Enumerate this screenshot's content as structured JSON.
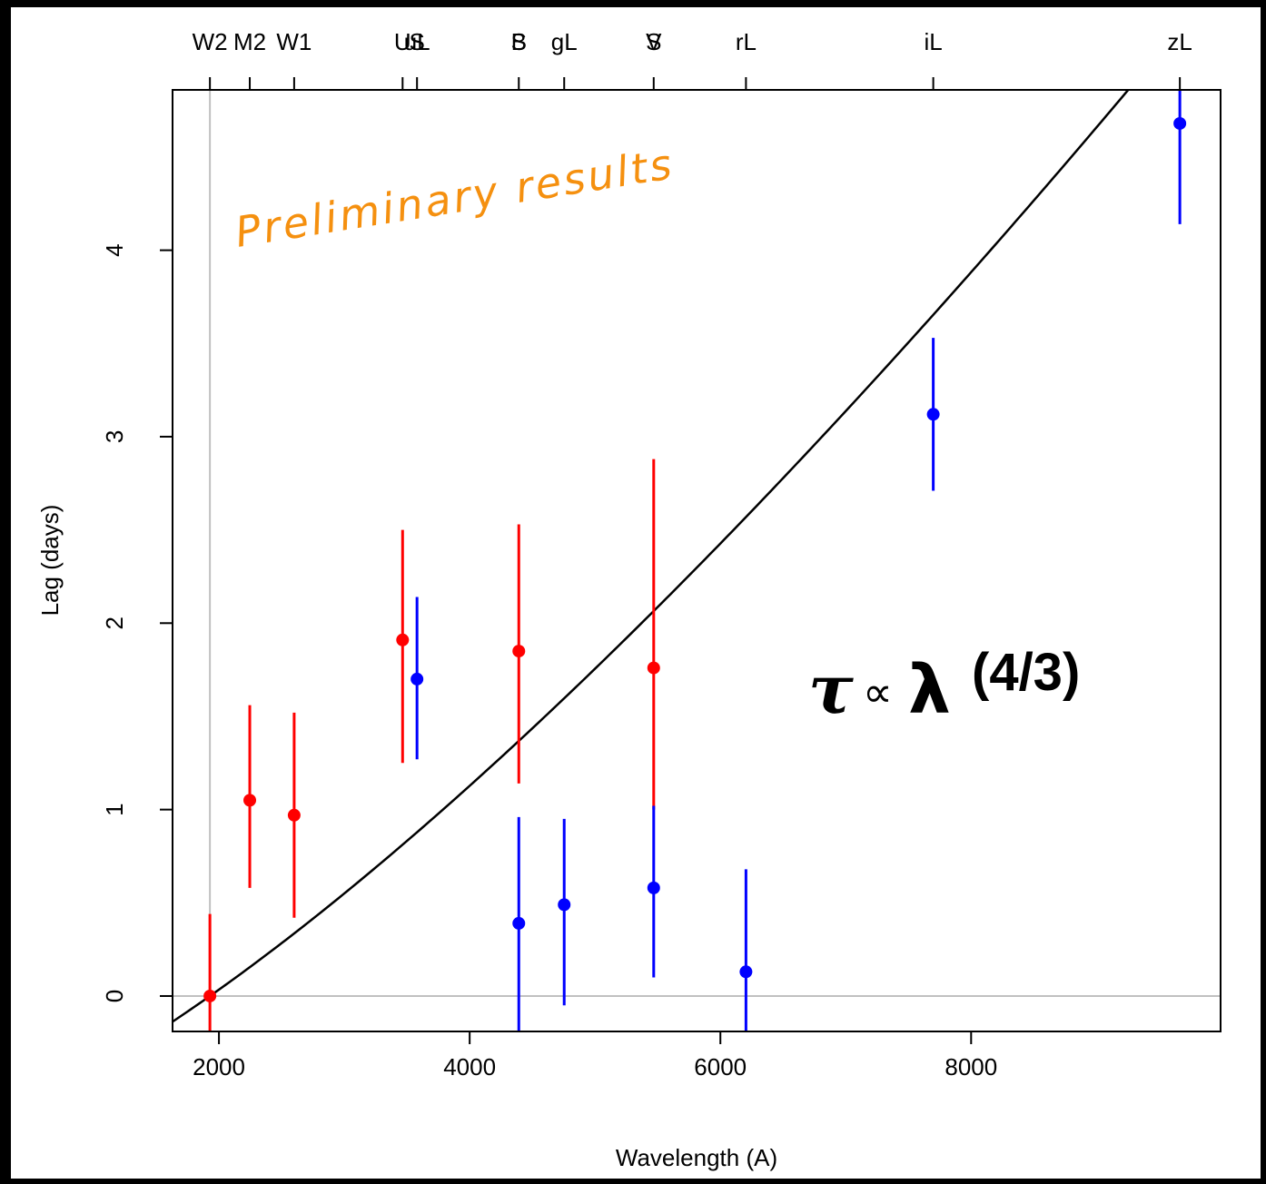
{
  "chart_data": {
    "type": "scatter",
    "xlabel": "Wavelength (A)",
    "ylabel": "Lag (days)",
    "xlim": [
      1630,
      9990
    ],
    "ylim": [
      -0.19,
      4.86
    ],
    "x_ticks": [
      2000,
      4000,
      6000,
      8000
    ],
    "x_tick_labels": [
      "2000",
      "4000",
      "6000",
      "8000"
    ],
    "y_ticks": [
      0,
      1,
      2,
      3,
      4
    ],
    "y_tick_labels": [
      "0",
      "1",
      "2",
      "3",
      "4"
    ],
    "grid": false,
    "reference_lines": {
      "horizontal_y": 0,
      "vertical_x": 1928,
      "color": "#c0c0c0"
    },
    "band_labels": [
      {
        "label": "W2",
        "x": 1928
      },
      {
        "label": "M2",
        "x": 2246
      },
      {
        "label": "W1",
        "x": 2600
      },
      {
        "label": "U",
        "x": 3465
      },
      {
        "label": "uL",
        "x": 3580
      },
      {
        "label": "S",
        "x": 3580
      },
      {
        "label": "B",
        "x": 4392
      },
      {
        "label": "S",
        "x": 4392
      },
      {
        "label": "gL",
        "x": 4754
      },
      {
        "label": "V",
        "x": 5468
      },
      {
        "label": "S",
        "x": 5468
      },
      {
        "label": "rL",
        "x": 6204
      },
      {
        "label": "iL",
        "x": 7698
      },
      {
        "label": "zL",
        "x": 9665
      }
    ],
    "band_tick_x": [
      1928,
      2246,
      2600,
      3465,
      3580,
      4392,
      4754,
      5468,
      6204,
      7698,
      9665
    ],
    "series": [
      {
        "color": "#ff0000",
        "points": [
          {
            "x": 1928,
            "y": 0.0,
            "ylo": -0.19,
            "yhi": 0.44
          },
          {
            "x": 2246,
            "y": 1.05,
            "ylo": 0.58,
            "yhi": 1.56
          },
          {
            "x": 2600,
            "y": 0.97,
            "ylo": 0.42,
            "yhi": 1.52
          },
          {
            "x": 3465,
            "y": 1.91,
            "ylo": 1.25,
            "yhi": 2.5
          },
          {
            "x": 4392,
            "y": 1.85,
            "ylo": 1.14,
            "yhi": 2.53
          },
          {
            "x": 5468,
            "y": 1.76,
            "ylo": 1.0,
            "yhi": 2.88
          }
        ]
      },
      {
        "color": "#0000ff",
        "points": [
          {
            "x": 3580,
            "y": 1.7,
            "ylo": 1.27,
            "yhi": 2.14
          },
          {
            "x": 4392,
            "y": 0.39,
            "ylo": -0.19,
            "yhi": 0.96
          },
          {
            "x": 4754,
            "y": 0.49,
            "ylo": -0.05,
            "yhi": 0.95
          },
          {
            "x": 5468,
            "y": 0.58,
            "ylo": 0.1,
            "yhi": 1.02
          },
          {
            "x": 6204,
            "y": 0.13,
            "ylo": -0.19,
            "yhi": 0.68
          },
          {
            "x": 7698,
            "y": 3.12,
            "ylo": 2.71,
            "yhi": 3.53
          },
          {
            "x": 9665,
            "y": 4.68,
            "ylo": 4.14,
            "yhi": 4.86
          }
        ]
      }
    ],
    "model_curve": {
      "reference_x": 1928,
      "amplitude": 0.685,
      "exponent": 1.3333,
      "color": "#000000"
    }
  },
  "annotations": {
    "preliminary": "Preliminary results",
    "formula_tau": "τ",
    "formula_prop": "∝",
    "formula_lambda": "λ",
    "formula_exp": "(4/3)",
    "preliminary_color": "#f5900f"
  },
  "colors": {
    "page_background": "#000000",
    "figure_background": "#ffffff",
    "red_series": "#ff0000",
    "blue_series": "#0000ff",
    "reference_line": "#c0c0c0"
  }
}
